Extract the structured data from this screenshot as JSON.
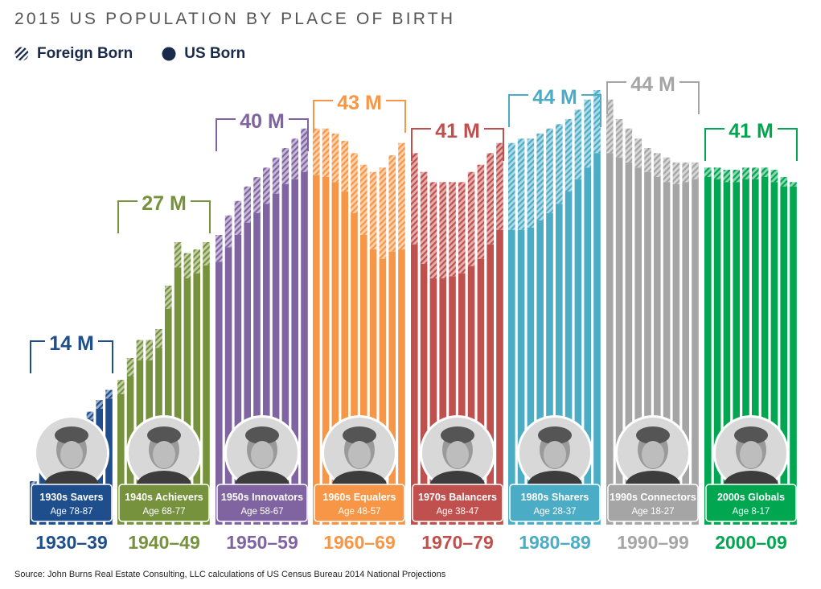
{
  "title": "2015 US POPULATION  BY PLACE OF BIRTH",
  "legend": {
    "foreign_label": "Foreign Born",
    "us_label": "US Born"
  },
  "source": "Source: John Burns Real Estate Consulting, LLC calculations of US Census Bureau 2014 National Projections",
  "chart_data": {
    "type": "bar",
    "stacked": true,
    "grid": false,
    "legend_position": "top-left",
    "series_names": [
      "Foreign Born",
      "US Born"
    ],
    "groups": [
      {
        "decade": "1930–39",
        "total_label": "14 M",
        "cohort": "1930s Savers",
        "age": "Age 78-87",
        "color": "#1f4e8c",
        "portrait": "man-with-glasses-portrait",
        "total": [
          0.6,
          0.76,
          0.92,
          1.08,
          1.24,
          1.4,
          1.56,
          1.72,
          1.86
        ],
        "us": [
          0.55,
          0.7,
          0.85,
          1.0,
          1.15,
          1.3,
          1.45,
          1.6,
          1.74
        ]
      },
      {
        "decade": "1940–49",
        "total_label": "27 M",
        "cohort": "1940s Achievers",
        "age": "Age 68-77",
        "color": "#76923c",
        "portrait": "woman-with-blonde-hair-portrait",
        "total": [
          2.0,
          2.3,
          2.55,
          2.55,
          2.7,
          3.3,
          3.9,
          3.75,
          3.8,
          3.9
        ],
        "us": [
          1.8,
          2.05,
          2.27,
          2.27,
          2.44,
          2.98,
          3.55,
          3.4,
          3.47,
          3.58
        ]
      },
      {
        "decade": "1950–59",
        "total_label": "40 M",
        "cohort": "1950s Innovators",
        "age": "Age 58-67",
        "color": "#8064a2",
        "portrait": "man-with-glasses-suit-portrait",
        "total": [
          4.0,
          4.27,
          4.47,
          4.67,
          4.8,
          4.93,
          5.07,
          5.2,
          5.33,
          5.47
        ],
        "us": [
          3.63,
          3.83,
          4.0,
          4.17,
          4.3,
          4.43,
          4.57,
          4.7,
          4.77,
          4.87
        ]
      },
      {
        "decade": "1960–69",
        "total_label": "43 M",
        "cohort": "1960s Equalers",
        "age": "Age 48-57",
        "color": "#f79646",
        "portrait": "woman-smiling-portrait",
        "total": [
          5.47,
          5.47,
          5.4,
          5.3,
          5.13,
          4.97,
          4.87,
          4.93,
          5.1,
          5.27
        ],
        "us": [
          4.83,
          4.8,
          4.73,
          4.6,
          4.3,
          4.0,
          3.8,
          3.67,
          3.77,
          3.8
        ]
      },
      {
        "decade": "1970–79",
        "total_label": "41 M",
        "cohort": "1970s Balancers",
        "age": "Age 38-47",
        "color": "#c0504d",
        "portrait": "woman-with-dark-hair-portrait",
        "total": [
          5.13,
          4.87,
          4.73,
          4.73,
          4.73,
          4.73,
          4.87,
          4.97,
          5.13,
          5.27
        ],
        "us": [
          3.87,
          3.6,
          3.4,
          3.4,
          3.43,
          3.47,
          3.57,
          3.67,
          3.87,
          4.07
        ]
      },
      {
        "decade": "1980–89",
        "total_label": "44 M",
        "cohort": "1980s Sharers",
        "age": "Age 28-37",
        "color": "#4bacc6",
        "portrait": "young-man-portrait",
        "total": [
          5.27,
          5.33,
          5.33,
          5.4,
          5.47,
          5.53,
          5.6,
          5.73,
          5.87,
          6.0
        ],
        "us": [
          4.07,
          4.07,
          4.1,
          4.2,
          4.3,
          4.43,
          4.6,
          4.77,
          4.93,
          5.13
        ]
      },
      {
        "decade": "1990–99",
        "total_label": "44 M",
        "cohort": "1990s Connectors",
        "age": "Age 18-27",
        "color": "#a5a5a5",
        "portrait": "young-woman-portrait",
        "total": [
          5.87,
          5.6,
          5.47,
          5.33,
          5.2,
          5.13,
          5.07,
          5.0,
          5.0,
          5.0
        ],
        "us": [
          5.13,
          5.07,
          5.0,
          4.93,
          4.87,
          4.8,
          4.73,
          4.7,
          4.73,
          4.77
        ]
      },
      {
        "decade": "2000–09",
        "total_label": "41 M",
        "cohort": "2000s Globals",
        "age": "Age 8-17",
        "color": "#00a650",
        "portrait": "girl-with-glasses-portrait",
        "total": [
          4.93,
          4.93,
          4.9,
          4.9,
          4.93,
          4.93,
          4.93,
          4.9,
          4.8,
          4.73
        ],
        "us": [
          4.8,
          4.77,
          4.73,
          4.73,
          4.77,
          4.77,
          4.8,
          4.73,
          4.67,
          4.67
        ]
      }
    ]
  }
}
